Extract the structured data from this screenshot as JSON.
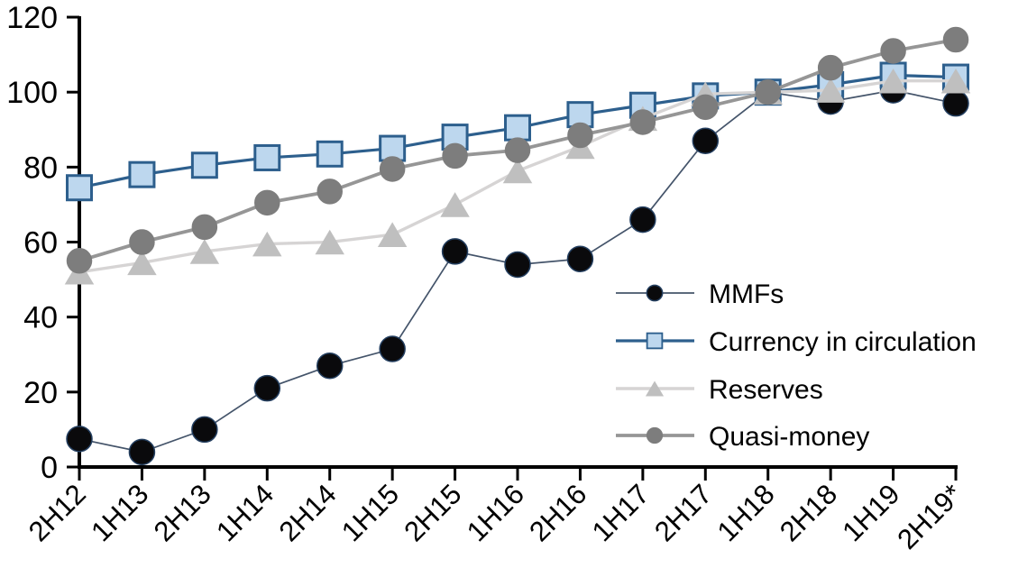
{
  "chart_data": {
    "type": "line",
    "title": "",
    "xlabel": "",
    "ylabel": "",
    "categories": [
      "2H12",
      "1H13",
      "2H13",
      "1H14",
      "2H14",
      "1H15",
      "2H15",
      "1H16",
      "2H16",
      "1H17",
      "2H17",
      "1H18",
      "2H18",
      "1H19",
      "2H19*"
    ],
    "series": [
      {
        "name": "MMFs",
        "marker": "circle",
        "values": [
          7.5,
          4,
          10,
          21,
          27,
          31.5,
          57.5,
          54,
          55.5,
          66,
          87,
          100,
          97.5,
          100.5,
          97
        ],
        "line_color": "#44546a",
        "line_width": 1.7,
        "marker_fill": "#0a0a0c",
        "marker_stroke": "#243f60",
        "marker_size": 28
      },
      {
        "name": "Currency in circulation",
        "marker": "square",
        "values": [
          74.5,
          78,
          80.5,
          82.5,
          83.5,
          85,
          88,
          90.5,
          94,
          96.5,
          99,
          100,
          102,
          104.5,
          104
        ],
        "line_color": "#2d5f8d",
        "line_width": 3.2,
        "marker_fill": "#bdd7ee",
        "marker_stroke": "#2d5f8d",
        "marker_size": 27
      },
      {
        "name": "Reserves",
        "marker": "triangle",
        "values": [
          52,
          54.5,
          57.5,
          59.5,
          60,
          62,
          70,
          79,
          85.5,
          93,
          99.5,
          100,
          100.5,
          103,
          103
        ],
        "line_color": "#d6d4d4",
        "line_width": 3.4,
        "marker_fill": "#bfbfbf",
        "marker_stroke": "#bfbfbf",
        "marker_size": 29
      },
      {
        "name": "Quasi-money",
        "marker": "circle",
        "values": [
          55,
          60,
          64,
          70.5,
          73.5,
          79.5,
          83,
          84.5,
          88.5,
          92,
          96,
          100,
          106.5,
          111,
          114
        ],
        "line_color": "#969696",
        "line_width": 3.8,
        "marker_fill": "#7d7d7d",
        "marker_stroke": "#7d7d7d",
        "marker_size": 27
      }
    ],
    "ylim": [
      0,
      120
    ],
    "yticks": [
      0,
      20,
      40,
      60,
      80,
      100,
      120
    ],
    "grid": false,
    "legend_position": "inside-right",
    "axis_color": "#000000"
  }
}
